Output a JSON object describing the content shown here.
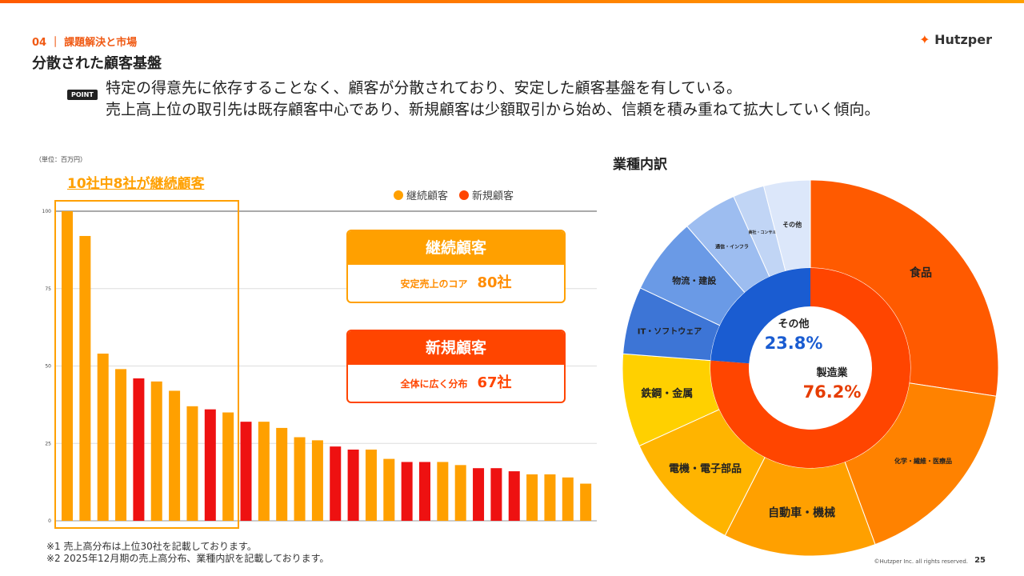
{
  "header": {
    "section": "04 ｜ 課題解決と市場",
    "title": "分散された顧客基盤",
    "logo": "Hutzper",
    "point_badge": "POINT",
    "lead1": "特定の得意先に依存することなく、顧客が分散されており、安定した顧客基盤を有している。",
    "lead2": "売上高上位の取引先は既存顧客中心であり、新規顧客は少額取引から始め、信頼を積み重ねて拡大していく傾向。"
  },
  "highlight": "10社中8社が継続顧客",
  "cards": {
    "continuing": {
      "title": "継続顧客",
      "desc": "安定売上のコア",
      "count": "80社"
    },
    "new": {
      "title": "新規顧客",
      "desc": "全体に広く分布",
      "count": "67社"
    }
  },
  "notes": [
    "※1 売上高分布は上位30社を記載しております。",
    "※2  2025年12月期の売上高分布、業種内訳を記載しております。"
  ],
  "footer": {
    "copyright": "©Hutzper Inc. all rights reserved.",
    "page": "25"
  },
  "colors": {
    "continuing": "#FFA000",
    "new": "#FF4500",
    "bar_new": "#EE1111"
  },
  "chart_data": [
    {
      "type": "bar",
      "title": "",
      "unit_label": "（単位：百万円）",
      "ylim": [
        0,
        100
      ],
      "yticks": [
        "0",
        "25",
        "50",
        "75",
        "100"
      ],
      "legend": [
        {
          "name": "継続顧客",
          "color": "#FFA000"
        },
        {
          "name": "新規顧客",
          "color": "#FF4500"
        }
      ],
      "legend_position": "top-right",
      "values": [
        100,
        92,
        54,
        49,
        46,
        45,
        42,
        37,
        36,
        35,
        32,
        32,
        30,
        27,
        26,
        24,
        23,
        23,
        20,
        19,
        19,
        19,
        18,
        17,
        17,
        16,
        15,
        15,
        14,
        12
      ],
      "types": [
        "c",
        "c",
        "c",
        "c",
        "n",
        "c",
        "c",
        "c",
        "n",
        "c",
        "n",
        "c",
        "c",
        "c",
        "c",
        "n",
        "n",
        "c",
        "c",
        "n",
        "n",
        "c",
        "c",
        "n",
        "n",
        "n",
        "c",
        "c",
        "c",
        "c"
      ]
    },
    {
      "type": "pie",
      "title": "業種内訳",
      "inner": [
        {
          "name": "製造業",
          "value": 76.2,
          "label": "76.2%",
          "color": "#FF4500"
        },
        {
          "name": "その他",
          "value": 23.8,
          "label": "23.8%",
          "color": "#1A5CD1"
        }
      ],
      "outer": [
        {
          "name": "食品",
          "value": 27.4,
          "color": "#FF5A00"
        },
        {
          "name": "化学・繊維・医療品",
          "value": 17.0,
          "color": "#FF8200"
        },
        {
          "name": "自動車・機械",
          "value": 13.1,
          "color": "#FFA000"
        },
        {
          "name": "電機・電子部品",
          "value": 10.7,
          "color": "#FFB400"
        },
        {
          "name": "鉄鋼・金属",
          "value": 8.0,
          "color": "#FFD000"
        },
        {
          "name": "IT・ソフトウェア",
          "value": 5.8,
          "color": "#3D75D6"
        },
        {
          "name": "物流・建設",
          "value": 6.6,
          "color": "#6A9AE6"
        },
        {
          "name": "通信・インフラ",
          "value": 4.7,
          "color": "#9DBDF0"
        },
        {
          "name": "商社・コンサル",
          "value": 2.7,
          "color": "#C1D5F5"
        },
        {
          "name": "その他",
          "value": 4.0,
          "color": "#DCE7FA"
        }
      ]
    }
  ]
}
